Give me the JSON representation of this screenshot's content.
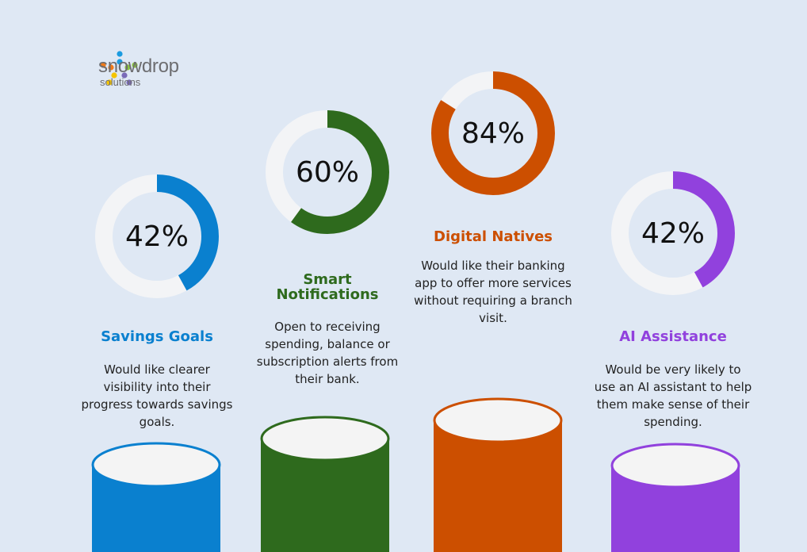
{
  "logo": {
    "word": "snowdrop",
    "sub": "solutions"
  },
  "chart_data": [
    {
      "type": "pie",
      "variant": "donut",
      "value": 42,
      "label": "42%",
      "title": "Savings Goals",
      "description": "Would like clearer visibility into their progress towards savings goals.",
      "color": "#0a80cf"
    },
    {
      "type": "pie",
      "variant": "donut",
      "value": 60,
      "label": "60%",
      "title": "Smart Notifications",
      "description": "Open to receiving spending, balance or subscription alerts from their bank.",
      "color": "#2e6a1d"
    },
    {
      "type": "pie",
      "variant": "donut",
      "value": 84,
      "label": "84%",
      "title": "Digital Natives",
      "description": "Would like their banking app to offer more services without requiring a branch visit.",
      "color": "#cc4f00"
    },
    {
      "type": "pie",
      "variant": "donut",
      "value": 42,
      "label": "42%",
      "title": "AI Assistance",
      "description": "Would be very likely to use an AI assistant to help them make sense of their spending.",
      "color": "#9141dd"
    }
  ],
  "track_color": "#f3f4f6"
}
